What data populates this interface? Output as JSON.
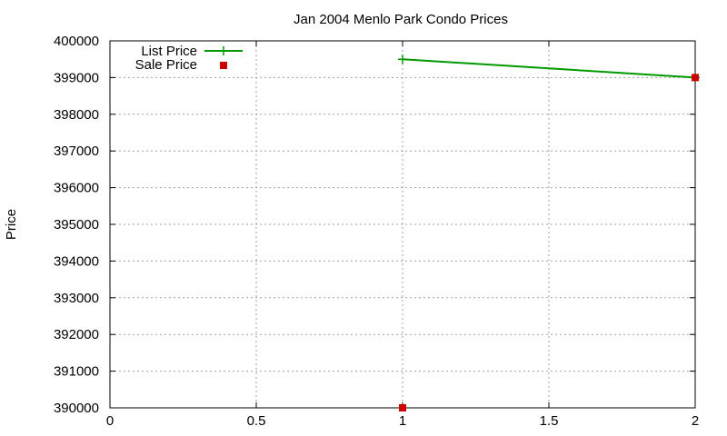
{
  "chart_data": {
    "type": "line",
    "title": "Jan 2004 Menlo Park Condo Prices",
    "xlabel": "",
    "ylabel": "Price",
    "xlim": [
      0,
      2
    ],
    "ylim": [
      390000,
      400000
    ],
    "xticks": [
      0,
      0.5,
      1,
      1.5,
      2
    ],
    "xtick_labels": [
      "0",
      "0.5",
      "1",
      "1.5",
      "2"
    ],
    "yticks": [
      390000,
      391000,
      392000,
      393000,
      394000,
      395000,
      396000,
      397000,
      398000,
      399000,
      400000
    ],
    "ytick_labels": [
      "390000",
      "391000",
      "392000",
      "393000",
      "394000",
      "395000",
      "396000",
      "397000",
      "398000",
      "399000",
      "400000"
    ],
    "grid": true,
    "legend_position": "top-left",
    "series": [
      {
        "name": "List Price",
        "style": "line-points",
        "marker": "plus",
        "color": "#009900",
        "points": [
          {
            "x": 1,
            "y": 399500
          },
          {
            "x": 2,
            "y": 399000
          }
        ]
      },
      {
        "name": "Sale Price",
        "style": "points",
        "marker": "square",
        "color": "#cc0000",
        "points": [
          {
            "x": 1,
            "y": 390000
          },
          {
            "x": 2,
            "y": 399000
          }
        ]
      }
    ]
  }
}
